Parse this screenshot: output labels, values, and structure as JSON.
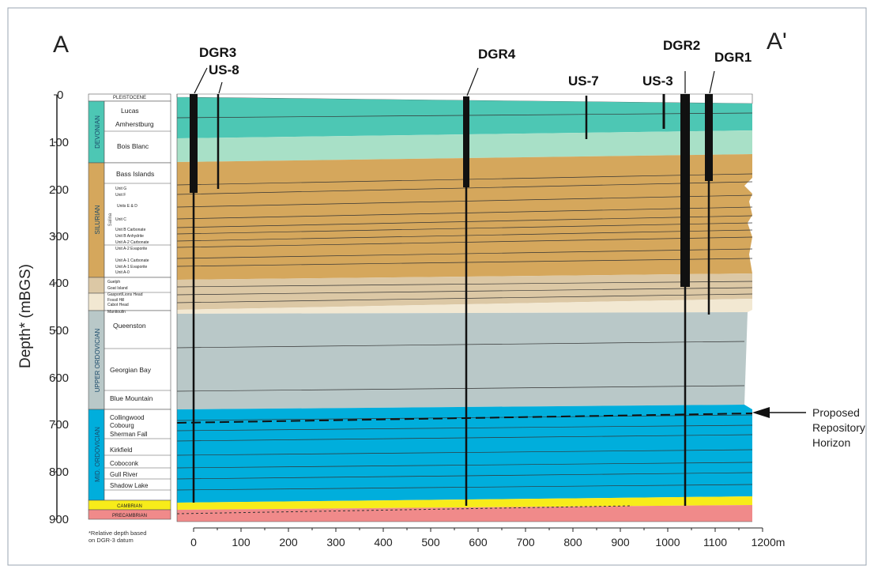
{
  "section": {
    "start": "A",
    "end": "A'"
  },
  "y_axis": {
    "label": "Depth* (mBGS)",
    "ticks": [
      "0",
      "100",
      "200",
      "300",
      "400",
      "500",
      "600",
      "700",
      "800",
      "900"
    ]
  },
  "x_axis": {
    "ticks": [
      "0",
      "100",
      "200",
      "300",
      "400",
      "500",
      "600",
      "700",
      "800",
      "900",
      "1000",
      "1100",
      "1200m"
    ]
  },
  "footnote": [
    "*Relative depth based",
    "on DGR-3 datum"
  ],
  "systems": [
    "PLEISTOCENE",
    "DEVONIAN",
    "SILURIAN",
    "UPPER ORDOVICIAN",
    "MID. ORDOVICIAN",
    "CAMBRIAN",
    "PRECAMBRIAN"
  ],
  "salina": "Salina",
  "formations": {
    "devonian": [
      "Lucas",
      "Amherstburg",
      "Bois Blanc"
    ],
    "silurian": [
      "Bass Islands",
      "Unit G",
      "Unit F",
      "Units E & D",
      "Unit C",
      "Unit B Carbonate",
      "Unit B Anhydrite",
      "Unit A-2 Carbonate",
      "Unit A-2 Evaporite",
      "Unit A-1 Carbonate",
      "Unit A-1 Evaporite",
      "Unit A-0"
    ],
    "lower_silurian": [
      "Guelph",
      "Goat Island",
      "Gasport/Lions Head",
      "Fossil Hill",
      "Cabot Head",
      "Manitoulin"
    ],
    "upper_ordovician": [
      "Queenston",
      "Georgian Bay",
      "Blue Mountain"
    ],
    "mid_ordovician": [
      "Collingwood",
      "Cobourg",
      "Sherman Fall",
      "Kirkfield",
      "Coboconk",
      "Gull River",
      "Shadow Lake"
    ]
  },
  "wells": [
    "DGR3",
    "US-8",
    "DGR4",
    "US-7",
    "US-3",
    "DGR2",
    "DGR1"
  ],
  "annotation": {
    "lines": [
      "Proposed",
      "Repository",
      "Horizon"
    ]
  },
  "colors": {
    "pleistocene": "#ffffff",
    "devonian_upper": "#4dc7b4",
    "devonian_lower": "#a8e0c7",
    "silurian": "#d5a75c",
    "silurian_lower": "#dcc8a5",
    "upper_ordovician": "#b9c8c8",
    "mid_ordovician": "#00aedc",
    "cambrian": "#f7ec1a",
    "precambrian": "#f08a8a",
    "well": "#111111"
  }
}
